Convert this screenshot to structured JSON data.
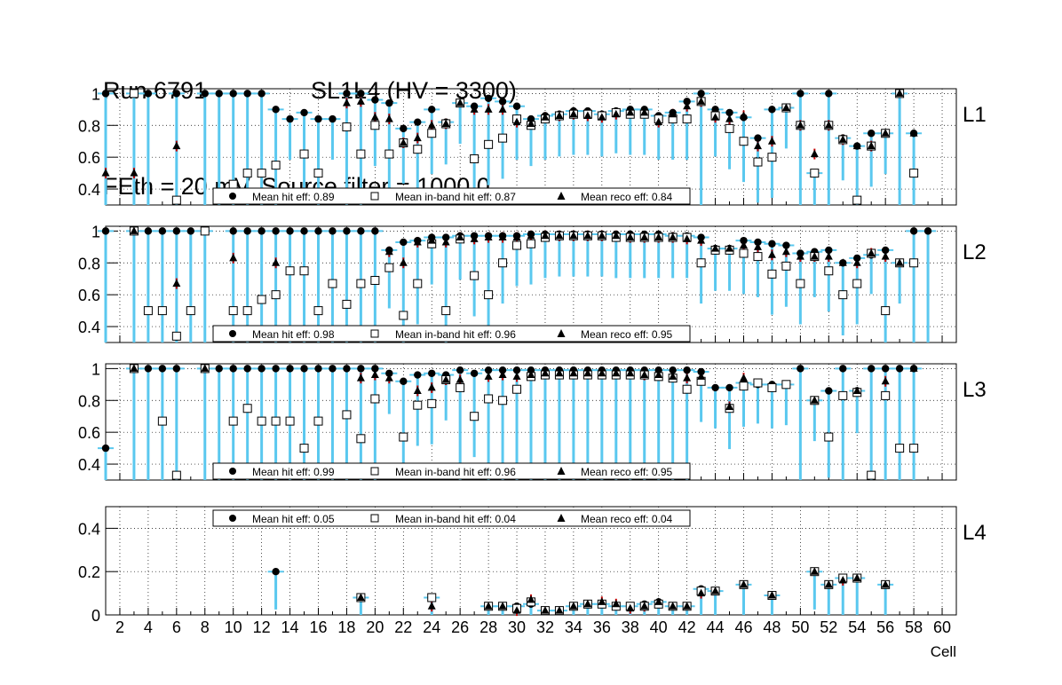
{
  "header": {
    "run": "Run 6791",
    "chamber": "SL1L4 (HV = 3300)",
    "subtitle": "FEth = 20 mV, Source filter = 1000.0"
  },
  "colors": {
    "hit_marker": "#000000",
    "err_bar": "#5ac8ef",
    "reco_err": "#cc0000",
    "low_err": "#7a1ab5",
    "grid": "#000000"
  },
  "chart_data": {
    "type": "scatter",
    "xlabel": "Cell",
    "xlim": [
      1,
      61
    ],
    "xticks": [
      "2",
      "4",
      "6",
      "8",
      "10",
      "12",
      "14",
      "16",
      "18",
      "20",
      "22",
      "24",
      "26",
      "28",
      "30",
      "32",
      "34",
      "36",
      "38",
      "40",
      "42",
      "44",
      "46",
      "48",
      "50",
      "52",
      "54",
      "56",
      "58",
      "60"
    ],
    "panels": [
      {
        "label": "L1",
        "ylim": [
          0.3,
          1.03
        ],
        "yticks": [
          "0.4",
          "0.6",
          "0.8",
          "1"
        ],
        "legend": {
          "hit": "Mean hit  eff: 0.89",
          "inband": "Mean in-band hit eff: 0.87",
          "reco": "Mean reco eff: 0.84"
        },
        "cells": [
          1,
          3,
          4,
          6,
          8,
          9,
          10,
          11,
          12,
          13,
          14,
          15,
          16,
          17,
          18,
          19,
          20,
          21,
          22,
          23,
          24,
          25,
          26,
          27,
          28,
          29,
          30,
          31,
          32,
          33,
          34,
          35,
          36,
          37,
          38,
          39,
          40,
          41,
          42,
          43,
          44,
          45,
          46,
          47,
          48,
          49,
          50,
          51,
          52,
          53,
          54,
          55,
          56,
          57,
          58
        ],
        "hit": [
          1,
          1,
          1,
          1,
          1,
          1,
          1,
          1,
          1,
          0.9,
          0.84,
          0.88,
          0.84,
          0.84,
          1,
          1,
          0.96,
          0.94,
          0.78,
          0.82,
          0.9,
          0.82,
          0.94,
          0.92,
          0.97,
          0.95,
          0.92,
          0.84,
          0.86,
          0.87,
          0.89,
          0.89,
          0.87,
          0.89,
          0.9,
          0.9,
          0.86,
          0.88,
          0.95,
          1,
          0.9,
          0.88,
          0.85,
          0.72,
          0.9,
          0.91,
          1,
          0.5,
          1,
          0.72,
          0.67,
          0.75,
          0.75,
          1,
          0.75
        ],
        "inband": [
          null,
          1,
          null,
          0.33,
          null,
          null,
          0.43,
          0.5,
          0.5,
          0.55,
          null,
          0.62,
          0.5,
          null,
          0.79,
          0.62,
          0.8,
          0.62,
          0.69,
          0.65,
          0.75,
          0.81,
          0.94,
          0.59,
          0.68,
          0.72,
          0.84,
          0.8,
          0.84,
          0.86,
          0.87,
          0.87,
          0.86,
          0.88,
          0.87,
          0.87,
          0.84,
          0.84,
          0.84,
          0.95,
          0.86,
          0.78,
          0.7,
          0.57,
          0.6,
          0.91,
          0.8,
          0.5,
          0.8,
          0.71,
          0.33,
          0.67,
          0.75,
          1,
          0.5
        ],
        "reco": [
          0.5,
          0.5,
          null,
          0.67,
          null,
          null,
          null,
          null,
          null,
          null,
          null,
          null,
          null,
          null,
          0.94,
          0.95,
          0.85,
          0.84,
          0.69,
          0.72,
          0.8,
          0.81,
          0.94,
          0.9,
          0.9,
          0.9,
          0.82,
          0.81,
          0.85,
          0.86,
          0.87,
          0.86,
          0.85,
          0.87,
          0.88,
          0.88,
          0.82,
          0.87,
          0.92,
          0.95,
          0.85,
          0.84,
          0.86,
          0.67,
          0.7,
          0.91,
          0.8,
          0.62,
          0.8,
          0.71,
          0.67,
          0.67,
          0.75,
          1,
          0.75
        ]
      },
      {
        "label": "L2",
        "ylim": [
          0.3,
          1.03
        ],
        "yticks": [
          "0.4",
          "0.6",
          "0.8",
          "1"
        ],
        "legend": {
          "hit": "Mean hit  eff: 0.98",
          "inband": "Mean in-band hit eff: 0.96",
          "reco": "Mean reco eff: 0.95"
        },
        "cells": [
          1,
          3,
          4,
          5,
          6,
          7,
          8,
          10,
          11,
          12,
          13,
          14,
          15,
          16,
          17,
          18,
          19,
          20,
          21,
          22,
          23,
          24,
          25,
          26,
          27,
          28,
          29,
          30,
          31,
          32,
          33,
          34,
          35,
          36,
          37,
          38,
          39,
          40,
          41,
          42,
          43,
          44,
          45,
          46,
          47,
          48,
          49,
          50,
          51,
          52,
          53,
          54,
          55,
          56,
          57,
          58,
          59
        ],
        "hit": [
          1,
          1,
          1,
          1,
          1,
          1,
          1,
          1,
          1,
          1,
          1,
          1,
          1,
          1,
          1,
          1,
          1,
          1,
          0.88,
          0.93,
          0.94,
          0.96,
          0.96,
          0.97,
          0.97,
          0.97,
          0.97,
          0.97,
          0.98,
          0.98,
          0.98,
          0.98,
          0.98,
          0.98,
          0.98,
          0.98,
          0.98,
          0.98,
          0.97,
          0.97,
          0.96,
          0.89,
          0.89,
          0.94,
          0.93,
          0.92,
          0.91,
          0.86,
          0.87,
          0.88,
          0.8,
          0.83,
          0.85,
          0.88,
          0.8,
          1,
          1
        ],
        "inband": [
          null,
          1,
          0.5,
          0.5,
          0.34,
          0.5,
          1,
          0.5,
          0.5,
          0.57,
          0.6,
          0.75,
          0.75,
          0.5,
          0.67,
          0.54,
          0.67,
          0.69,
          0.77,
          0.47,
          0.67,
          0.92,
          0.5,
          0.95,
          0.72,
          0.6,
          0.8,
          0.91,
          0.92,
          0.96,
          0.97,
          0.97,
          0.97,
          0.97,
          0.96,
          0.96,
          0.96,
          0.96,
          0.96,
          0.96,
          0.8,
          0.88,
          0.88,
          0.86,
          0.84,
          0.73,
          0.78,
          0.67,
          0.84,
          0.75,
          0.6,
          0.67,
          0.86,
          0.5,
          0.8,
          0.8,
          null
        ],
        "reco": [
          null,
          1,
          null,
          null,
          0.67,
          null,
          null,
          0.83,
          null,
          null,
          0.8,
          null,
          null,
          null,
          null,
          null,
          null,
          null,
          0.87,
          0.8,
          0.93,
          0.94,
          0.93,
          0.96,
          0.95,
          0.96,
          0.96,
          0.96,
          0.97,
          0.97,
          0.97,
          0.97,
          0.97,
          0.97,
          0.97,
          0.96,
          0.96,
          0.96,
          0.96,
          0.95,
          0.94,
          0.89,
          0.89,
          0.91,
          0.9,
          0.85,
          0.87,
          0.84,
          0.84,
          0.84,
          0.8,
          0.8,
          0.86,
          0.84,
          0.8,
          null,
          null
        ]
      },
      {
        "label": "L3",
        "ylim": [
          0.3,
          1.03
        ],
        "yticks": [
          "0.4",
          "0.6",
          "0.8",
          "1"
        ],
        "legend": {
          "hit": "Mean hit  eff: 0.99",
          "inband": "Mean in-band hit eff: 0.96",
          "reco": "Mean reco eff: 0.95"
        },
        "cells": [
          1,
          3,
          4,
          5,
          6,
          8,
          9,
          10,
          11,
          12,
          13,
          14,
          15,
          16,
          17,
          18,
          19,
          20,
          21,
          22,
          23,
          24,
          25,
          26,
          27,
          28,
          29,
          30,
          31,
          32,
          33,
          34,
          35,
          36,
          37,
          38,
          39,
          40,
          41,
          42,
          43,
          44,
          45,
          46,
          47,
          48,
          49,
          50,
          51,
          52,
          53,
          54,
          55,
          56,
          57,
          58
        ],
        "hit": [
          0.5,
          1,
          1,
          1,
          1,
          1,
          1,
          1,
          1,
          1,
          1,
          1,
          1,
          1,
          1,
          1,
          1,
          1,
          0.97,
          0.92,
          0.96,
          0.97,
          0.96,
          0.99,
          0.97,
          0.99,
          0.99,
          0.99,
          0.99,
          0.99,
          0.99,
          0.99,
          0.99,
          0.99,
          0.99,
          0.99,
          0.99,
          0.99,
          0.99,
          0.99,
          0.98,
          0.88,
          0.88,
          0.91,
          0.9,
          0.9,
          0.9,
          1,
          0.8,
          0.86,
          1,
          0.86,
          1,
          1,
          1,
          1
        ],
        "inband": [
          null,
          1,
          null,
          0.67,
          0.33,
          1,
          null,
          0.67,
          0.75,
          0.67,
          0.67,
          0.67,
          0.5,
          0.67,
          null,
          0.71,
          0.56,
          0.81,
          null,
          0.57,
          0.77,
          0.78,
          0.93,
          0.88,
          0.7,
          0.81,
          0.8,
          0.87,
          0.95,
          0.96,
          0.96,
          0.96,
          0.96,
          0.96,
          0.96,
          0.96,
          0.96,
          0.95,
          0.94,
          0.87,
          0.92,
          null,
          0.75,
          0.89,
          0.91,
          0.88,
          0.9,
          null,
          0.8,
          0.57,
          0.83,
          0.85,
          0.33,
          0.83,
          0.5,
          0.5
        ],
        "reco": [
          null,
          1,
          null,
          null,
          null,
          1,
          null,
          null,
          null,
          null,
          null,
          null,
          null,
          null,
          null,
          null,
          0.94,
          0.96,
          0.94,
          null,
          0.86,
          0.88,
          0.93,
          0.93,
          null,
          0.95,
          0.96,
          0.95,
          0.96,
          0.97,
          0.97,
          0.97,
          0.97,
          0.97,
          0.97,
          0.97,
          0.96,
          0.96,
          0.95,
          0.94,
          0.95,
          null,
          0.76,
          0.94,
          null,
          null,
          null,
          null,
          0.8,
          null,
          null,
          0.86,
          null,
          0.92,
          null,
          1
        ]
      },
      {
        "label": "L4",
        "ylim": [
          0,
          0.5
        ],
        "yticks": [
          "0",
          "0.2",
          "0.4"
        ],
        "legend": {
          "hit": "Mean hit  eff: 0.05",
          "inband": "Mean in-band hit eff: 0.04",
          "reco": "Mean reco eff: 0.04"
        },
        "cells": [
          13,
          19,
          24,
          28,
          29,
          30,
          31,
          32,
          33,
          34,
          35,
          36,
          37,
          38,
          39,
          40,
          41,
          42,
          43,
          44,
          46,
          48,
          51,
          52,
          53,
          54,
          56
        ],
        "hit": [
          0.2,
          0.08,
          0.08,
          0.04,
          0.04,
          0.04,
          0.05,
          0.02,
          0.02,
          0.04,
          0.05,
          0.05,
          0.04,
          0.04,
          0.05,
          0.06,
          0.04,
          0.04,
          0.12,
          0.11,
          0.14,
          0.09,
          0.2,
          0.14,
          0.17,
          0.17,
          0.14
        ],
        "inband": [
          null,
          0.08,
          0.08,
          0.04,
          0.04,
          0.03,
          0.06,
          0.02,
          0.02,
          0.04,
          0.05,
          0.05,
          0.04,
          0.04,
          0.04,
          0.05,
          0.04,
          0.04,
          0.11,
          0.11,
          0.14,
          0.09,
          0.2,
          0.14,
          0.17,
          0.17,
          0.14
        ],
        "reco": [
          null,
          0.08,
          0.04,
          0.04,
          0.04,
          0.02,
          0.07,
          0.02,
          0.02,
          0.04,
          0.05,
          0.06,
          0.05,
          0.03,
          0.04,
          0.06,
          0.04,
          0.04,
          0.1,
          0.11,
          0.14,
          0.09,
          0.2,
          0.14,
          0.16,
          0.17,
          0.14
        ]
      }
    ]
  }
}
